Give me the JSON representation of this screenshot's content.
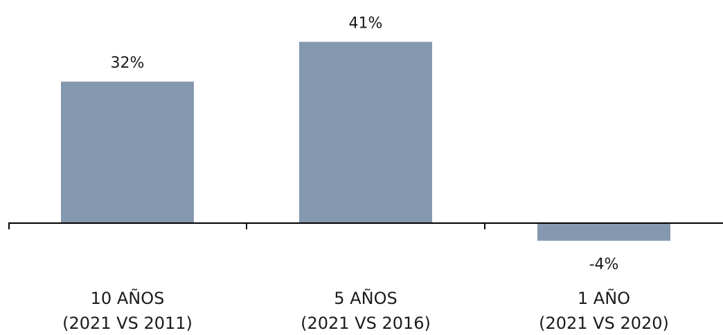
{
  "chart_data": {
    "type": "bar",
    "categories": [
      [
        "10 AÑOS",
        "(2021 VS 2011)"
      ],
      [
        "5 AÑOS",
        "(2021 VS 2016)"
      ],
      [
        "1 AÑO",
        "(2021 VS 2020)"
      ]
    ],
    "values": [
      32,
      41,
      -4
    ],
    "data_labels": [
      "32%",
      "41%",
      "-4%"
    ],
    "unit": "%",
    "title": "",
    "xlabel": "",
    "ylabel": "",
    "grid": false,
    "legend": "none",
    "bar_color": "#8499b0",
    "axis_color": "#000000"
  }
}
